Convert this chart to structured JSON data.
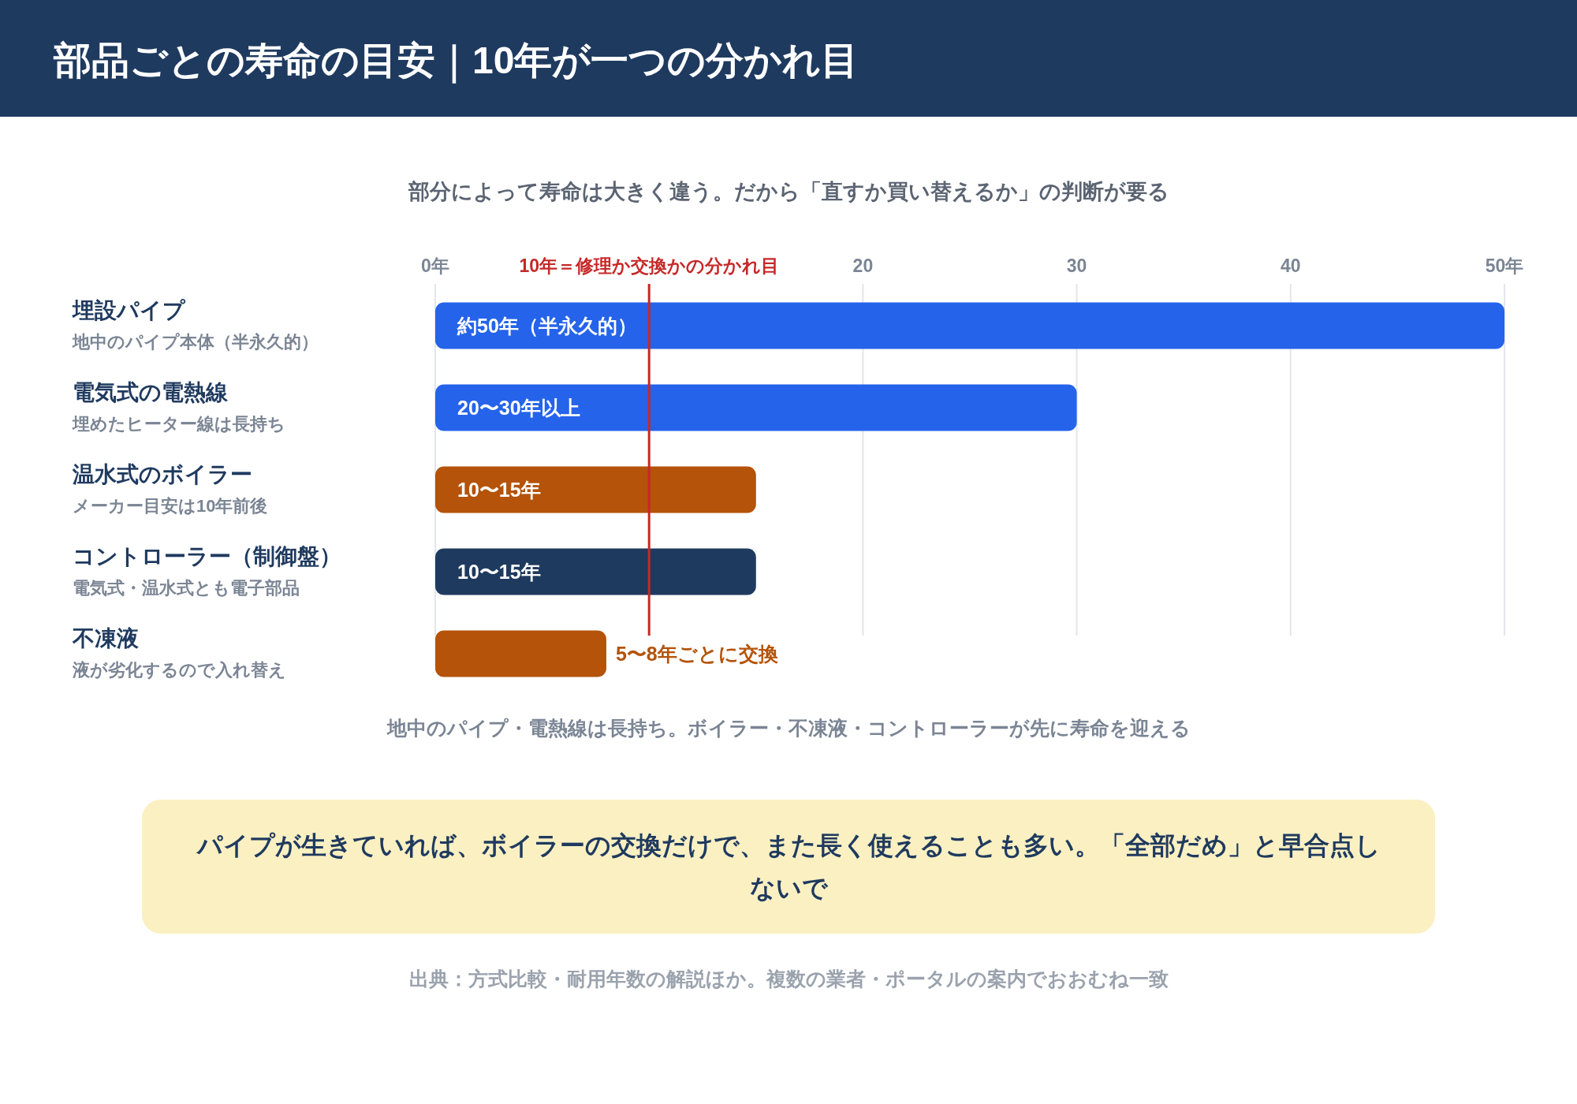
{
  "chart_data": {
    "type": "bar",
    "orientation": "horizontal",
    "title": "部品ごとの寿命の目安｜10年が一つの分かれ目",
    "subtitle": "部分によって寿命は大きく違う。だから「直すか買い替えるか」の判断が要る",
    "categories": [
      "埋設パイプ",
      "電気式の電熱線",
      "温水式のボイラー",
      "コントローラー（制御盤）",
      "不凍液"
    ],
    "values": [
      50,
      30,
      15,
      15,
      8
    ],
    "colors": [
      "#2563eb",
      "#2563eb",
      "#b45309",
      "#1f3a5f",
      "#b45309"
    ],
    "value_labels": [
      "約50年（半永久的）",
      "20〜30年以上",
      "10〜15年",
      "10〜15年",
      "5〜8年ごとに交換"
    ],
    "xlim": [
      0,
      50
    ],
    "xticks": [
      {
        "value": 0,
        "label": "0年"
      },
      {
        "value": 10,
        "label": null
      },
      20,
      30,
      40,
      {
        "value": 50,
        "label": "50年"
      }
    ],
    "grid": "x",
    "ref_lines": [
      {
        "axis": "x",
        "value": 10,
        "label": "10年＝修理か交換かの分かれ目",
        "color": "#c62828"
      }
    ],
    "annotations": [
      "地中のパイプ本体（半永久的）",
      "埋めたヒーター線は長持ち",
      "メーカー目安は10年前後",
      "電気式・温水式とも電子部品",
      "液が劣化するので入れ替え",
      "地中のパイプ・電熱線は長持ち。ボイラー・不凍液・コントローラーが先に寿命を迎える",
      "パイプが生きていれば、ボイラーの交換だけで、また長く使えることも多い。「全部だめ」と早合点しないで",
      "出典：方式比較・耐用年数の解説ほか。複数の業者・ポータルの案内でおおむね一致"
    ]
  }
}
